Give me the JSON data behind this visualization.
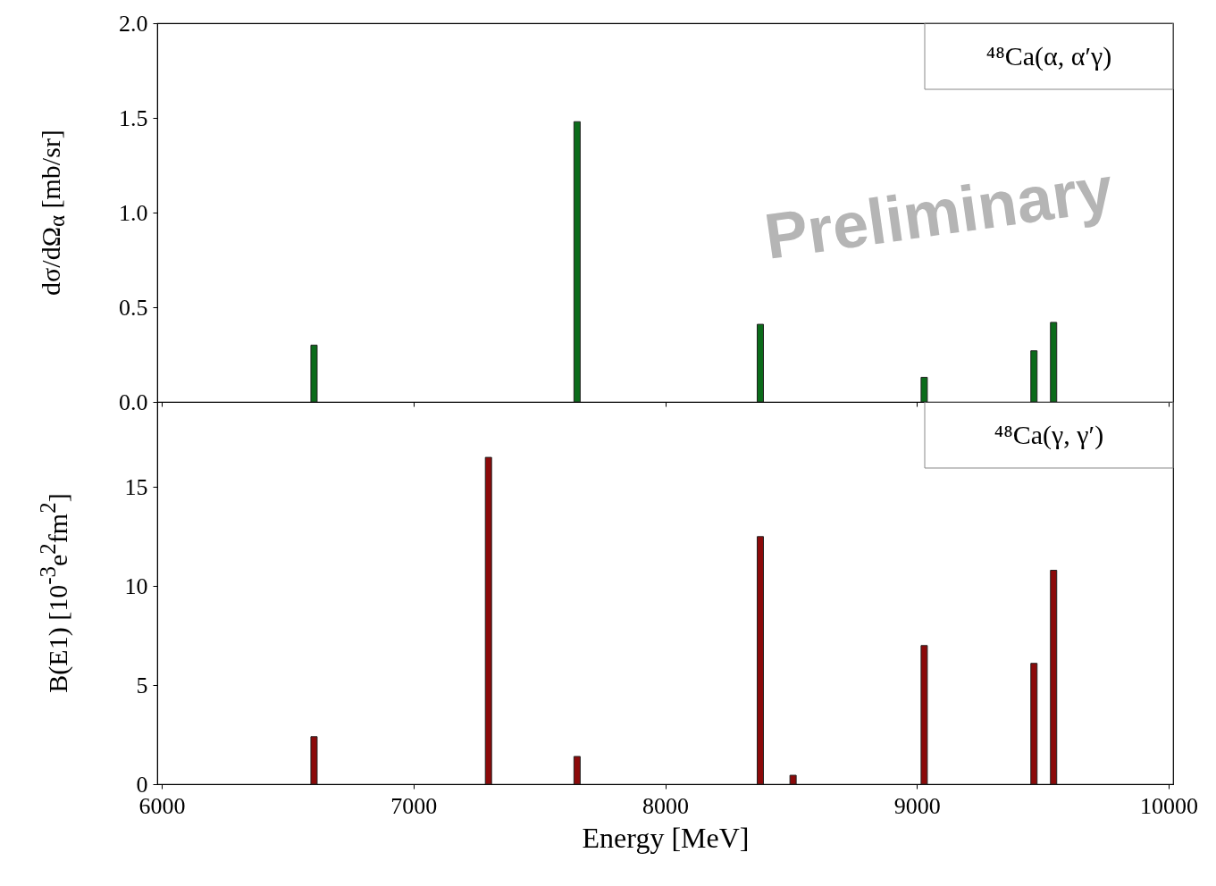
{
  "chart_data": [
    {
      "type": "bar",
      "x": [
        6605,
        7650,
        8378,
        9029,
        9465,
        9543
      ],
      "values": [
        0.3,
        1.48,
        0.41,
        0.13,
        0.27,
        0.42
      ],
      "color": "#0b6b1a",
      "xlim": [
        6000,
        10000
      ],
      "xticks": [
        6000,
        7000,
        8000,
        9000,
        10000
      ],
      "ylim": [
        0,
        2
      ],
      "yticks": [
        {
          "value": 0,
          "label": "0.0"
        },
        {
          "value": 0.5,
          "label": "0.5"
        },
        {
          "value": 1,
          "label": "1.0"
        },
        {
          "value": 1.5,
          "label": "1.5"
        },
        {
          "value": 2,
          "label": "2.0"
        }
      ],
      "ylabel": "dσ/dΩ$_{α}$ [mb/sr]",
      "tick_labels": "y",
      "grid": false,
      "annotations": [
        "⁴⁸Ca(α, α′γ)",
        "Preliminary"
      ]
    },
    {
      "type": "bar",
      "x": [
        6605,
        7298,
        7650,
        8378,
        8508,
        9029,
        9465,
        9543
      ],
      "values": [
        2.4,
        16.5,
        1.4,
        12.5,
        0.45,
        7.0,
        6.1,
        10.8
      ],
      "color": "#8b0a0a",
      "xlim": [
        6000,
        10000
      ],
      "xticks": [
        6000,
        7000,
        8000,
        9000,
        10000
      ],
      "ylim": [
        0,
        19.3
      ],
      "yticks": [
        0,
        5,
        10,
        15
      ],
      "xlabel": "Energy [MeV]",
      "ylabel": "B(E1) [10$^{-3}$e$^{2}$fm$^{2}$]",
      "grid": false,
      "annotations": [
        "⁴⁸Ca(γ, γ′)"
      ]
    }
  ]
}
